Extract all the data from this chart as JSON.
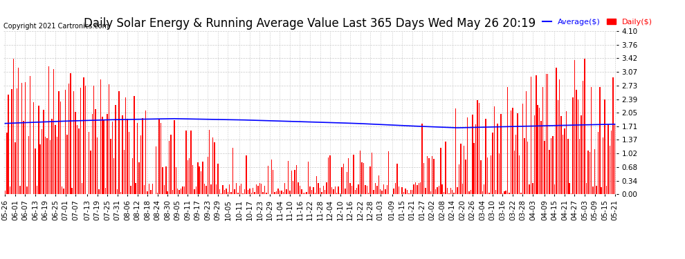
{
  "title": "Daily Solar Energy & Running Average Value Last 365 Days Wed May 26 20:19",
  "copyright": "Copyright 2021 Cartronics.com",
  "ylabel_right_ticks": [
    0.0,
    0.34,
    0.68,
    1.02,
    1.37,
    1.71,
    2.05,
    2.39,
    2.73,
    3.07,
    3.42,
    3.76,
    4.1
  ],
  "ylim": [
    0.0,
    4.1
  ],
  "bar_color": "#FF0000",
  "avg_line_color": "#0000FF",
  "background_color": "#FFFFFF",
  "grid_color": "#C8C8C8",
  "legend_avg_label": "Average($)",
  "legend_daily_label": "Daily($)",
  "title_fontsize": 12,
  "copyright_fontsize": 7,
  "tick_fontsize": 7.5,
  "n_bars": 365,
  "x_labels": [
    "05-26",
    "06-01",
    "06-07",
    "06-13",
    "06-19",
    "06-25",
    "07-01",
    "07-07",
    "07-13",
    "07-19",
    "07-25",
    "07-31",
    "08-06",
    "08-12",
    "08-18",
    "08-24",
    "08-30",
    "09-05",
    "09-11",
    "09-17",
    "09-23",
    "09-29",
    "10-05",
    "10-11",
    "10-17",
    "10-23",
    "10-29",
    "11-04",
    "11-10",
    "11-16",
    "11-22",
    "11-28",
    "12-04",
    "12-10",
    "12-16",
    "12-22",
    "12-28",
    "01-03",
    "01-09",
    "01-15",
    "01-21",
    "01-27",
    "02-02",
    "02-08",
    "02-14",
    "02-20",
    "02-26",
    "03-04",
    "03-10",
    "03-16",
    "03-22",
    "03-28",
    "04-03",
    "04-09",
    "04-15",
    "04-21",
    "04-27",
    "05-03",
    "05-09",
    "05-15",
    "05-21"
  ]
}
